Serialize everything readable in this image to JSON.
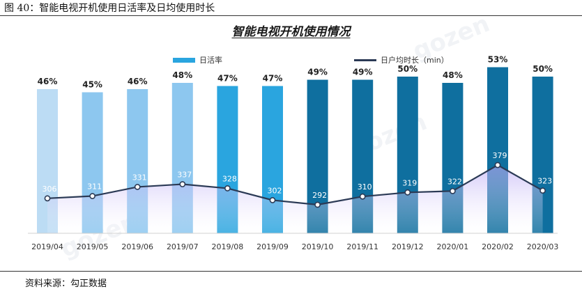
{
  "caption": "图 40：智能电视开机使用日活率及日均使用时长",
  "source": "资料来源：勾正数据",
  "watermark": "gozen",
  "colors": {
    "bar_light": "#a9d6f2",
    "bar_mid": "#2aa5df",
    "bar_dark": "#0f6f9f",
    "line": "#2b3a55",
    "area_top": "#b9a8f5"
  },
  "chart_data": {
    "type": "bar",
    "title": "智能电视开机使用情况",
    "legend_position": "top",
    "categories": [
      "2019/04",
      "2019/05",
      "2019/06",
      "2019/07",
      "2019/08",
      "2019/09",
      "2019/10",
      "2019/11",
      "2019/12",
      "2020/01",
      "2020/02",
      "2020/03"
    ],
    "series": [
      {
        "name": "日活率",
        "type": "bar",
        "values": [
          46,
          45,
          46,
          48,
          47,
          47,
          49,
          49,
          50,
          48,
          53,
          50
        ],
        "labels": [
          "46%",
          "45%",
          "46%",
          "48%",
          "47%",
          "47%",
          "49%",
          "49%",
          "50%",
          "48%",
          "53%",
          "50%"
        ]
      },
      {
        "name": "日户均时长（min）",
        "type": "line",
        "values": [
          306,
          311,
          331,
          337,
          328,
          302,
          292,
          310,
          319,
          322,
          379,
          323
        ],
        "labels": [
          "306",
          "311",
          "331",
          "337",
          "328",
          "302",
          "292",
          "310",
          "319",
          "322",
          "379",
          "323"
        ]
      }
    ]
  }
}
